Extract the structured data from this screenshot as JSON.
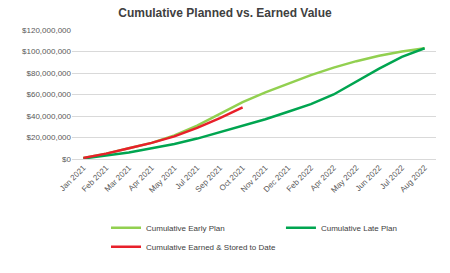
{
  "chart_data": {
    "type": "line",
    "title": "Cumulative Planned vs. Earned Value",
    "categories": [
      "Jan 2021",
      "Feb 2021",
      "Mar 2021",
      "Apr 2021",
      "May 2021",
      "Jul 2021",
      "Sep 2021",
      "Oct 2021",
      "Nov 2021",
      "Dec 2021",
      "Feb 2022",
      "Apr 2022",
      "May 2022",
      "Jun 2022",
      "Jul 2022",
      "Aug 2022"
    ],
    "series": [
      {
        "name": "Cumulative Early Plan",
        "color": "#92d050",
        "values": [
          1000000,
          5000000,
          10000000,
          15000000,
          22000000,
          31000000,
          42000000,
          53000000,
          62000000,
          70000000,
          78000000,
          85000000,
          91000000,
          96000000,
          100000000,
          103000000
        ]
      },
      {
        "name": "Cumulative Late Plan",
        "color": "#00a550",
        "values": [
          500000,
          3000000,
          6000000,
          10000000,
          14000000,
          19000000,
          25000000,
          31000000,
          37000000,
          44000000,
          51000000,
          60000000,
          72000000,
          84000000,
          95000000,
          103000000
        ]
      },
      {
        "name": "Cumulative Earned & Stored to Date",
        "color": "#e8202a",
        "values": [
          1000000,
          5000000,
          10000000,
          15000000,
          21000000,
          29000000,
          38000000,
          48000000,
          null,
          null,
          null,
          null,
          null,
          null,
          null,
          null
        ]
      }
    ],
    "ylim": [
      0,
      120000000
    ],
    "yticks": [
      {
        "value": 0,
        "label": "$0"
      },
      {
        "value": 20000000,
        "label": "$20,000,000"
      },
      {
        "value": 40000000,
        "label": "$40,000,000"
      },
      {
        "value": 60000000,
        "label": "$60,000,000"
      },
      {
        "value": 80000000,
        "label": "$80,000,000"
      },
      {
        "value": 100000000,
        "label": "$100,000,000"
      },
      {
        "value": 120000000,
        "label": "$120,000,000"
      }
    ],
    "grid": true,
    "legend": "bottom",
    "marker": "none"
  }
}
